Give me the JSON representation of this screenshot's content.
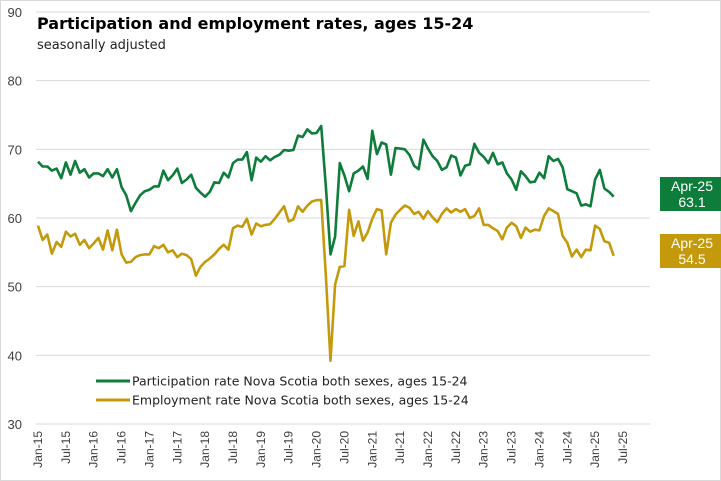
{
  "chart_data": {
    "type": "line",
    "title": "Participation and employment rates, ages 15-24",
    "subtitle": "seasonally adjusted",
    "xlabel": "",
    "ylabel": "",
    "ylim": [
      30,
      90
    ],
    "yticks": [
      30,
      40,
      50,
      60,
      70,
      80,
      90
    ],
    "grid": true,
    "legend_position": "bottom-left",
    "x_start": "Jan-15",
    "x_tick_labels": [
      "Jan-15",
      "Jul-15",
      "Jan-16",
      "Jul-16",
      "Jan-17",
      "Jul-17",
      "Jan-18",
      "Jul-18",
      "Jan-19",
      "Jul-19",
      "Jan-20",
      "Jul-20",
      "Jan-21",
      "Jul-21",
      "Jan-22",
      "Jul-22",
      "Jan-23",
      "Jul-23",
      "Jan-24",
      "Jul-24",
      "Jan-25",
      "Jul-25"
    ],
    "x_axis_months": 127,
    "series": [
      {
        "name": "Participation rate Nova Scotia both sexes, ages 15-24",
        "color": "#0e7c3a",
        "values": [
          68.2,
          67.5,
          67.5,
          66.9,
          67.2,
          65.8,
          68.1,
          66.3,
          68.3,
          66.6,
          67.1,
          65.9,
          66.5,
          66.5,
          66.1,
          67.1,
          65.9,
          67.1,
          64.5,
          63.3,
          61.0,
          62.2,
          63.3,
          63.9,
          64.1,
          64.6,
          64.6,
          66.9,
          65.5,
          66.2,
          67.2,
          65.1,
          65.6,
          66.3,
          64.4,
          63.7,
          63.1,
          63.8,
          65.2,
          65.1,
          66.6,
          65.9,
          68.0,
          68.5,
          68.5,
          69.6,
          65.5,
          68.8,
          68.2,
          69.0,
          68.4,
          68.9,
          69.2,
          69.9,
          69.8,
          69.9,
          72.0,
          71.8,
          72.9,
          72.3,
          72.4,
          73.4,
          64.5,
          54.7,
          57.3,
          68.0,
          66.2,
          63.9,
          66.5,
          66.9,
          67.5,
          65.7,
          72.7,
          69.3,
          71.0,
          70.7,
          66.3,
          70.2,
          70.1,
          70.0,
          69.2,
          67.6,
          67.1,
          71.4,
          70.1,
          69.0,
          68.3,
          67.0,
          67.4,
          69.1,
          68.8,
          66.2,
          67.6,
          67.8,
          70.8,
          69.5,
          68.9,
          68.0,
          69.5,
          67.8,
          68.1,
          66.5,
          65.6,
          64.1,
          66.8,
          66.1,
          65.2,
          65.3,
          66.6,
          65.8,
          69.0,
          68.3,
          68.6,
          67.4,
          64.2,
          63.9,
          63.6,
          61.8,
          62.0,
          61.7,
          65.6,
          67.0,
          64.3,
          63.8,
          63.1
        ]
      },
      {
        "name": "Employment rate Nova Scotia both sexes, ages 15-24",
        "color": "#c49a0c",
        "values": [
          58.9,
          56.8,
          57.6,
          54.8,
          56.5,
          55.8,
          58.0,
          57.3,
          57.7,
          56.1,
          56.8,
          55.6,
          56.3,
          57.1,
          55.4,
          58.2,
          55.3,
          58.3,
          54.7,
          53.5,
          53.6,
          54.3,
          54.6,
          54.7,
          54.7,
          55.9,
          55.6,
          56.1,
          55.0,
          55.3,
          54.3,
          54.8,
          54.6,
          54.0,
          51.6,
          52.9,
          53.6,
          54.1,
          54.7,
          55.5,
          56.1,
          55.4,
          58.5,
          58.9,
          58.7,
          59.9,
          57.6,
          59.2,
          58.8,
          59.0,
          59.1,
          59.9,
          60.8,
          61.7,
          59.5,
          59.8,
          61.7,
          60.9,
          61.8,
          62.4,
          62.6,
          62.6,
          51.5,
          39.2,
          50.3,
          52.9,
          53.0,
          61.2,
          57.4,
          59.5,
          56.7,
          57.9,
          59.9,
          61.3,
          61.1,
          54.7,
          59.3,
          60.5,
          61.2,
          61.8,
          61.5,
          60.6,
          60.9,
          59.9,
          61.0,
          60.1,
          59.4,
          60.6,
          61.4,
          60.8,
          61.3,
          60.9,
          61.3,
          60.0,
          60.3,
          61.4,
          59.0,
          59.0,
          58.5,
          58.1,
          56.9,
          58.6,
          59.3,
          58.8,
          57.1,
          58.6,
          58.0,
          58.3,
          58.2,
          60.3,
          61.4,
          61.0,
          60.6,
          57.4,
          56.4,
          54.4,
          55.4,
          54.3,
          55.4,
          55.3,
          58.9,
          58.4,
          56.6,
          56.4,
          54.5
        ]
      }
    ],
    "end_labels": [
      {
        "series": "participation",
        "period": "Apr-25",
        "value": "63.1",
        "color": "#0e7c3a"
      },
      {
        "series": "employment",
        "period": "Apr-25",
        "value": "54.5",
        "color": "#c49a0c"
      }
    ]
  }
}
